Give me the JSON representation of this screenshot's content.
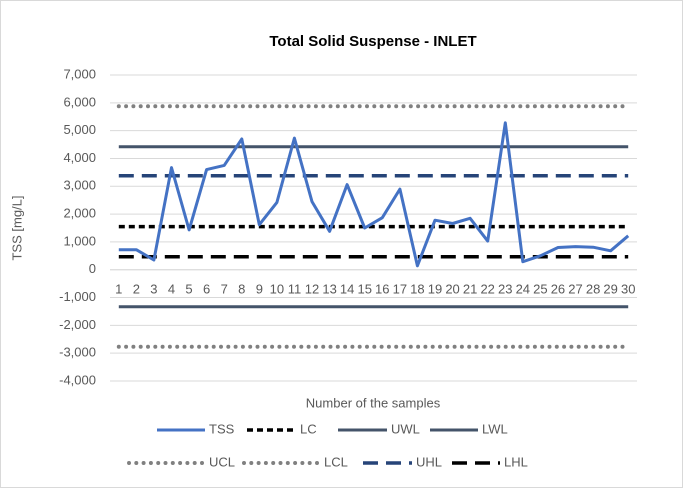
{
  "chart_data": {
    "type": "line",
    "title": "Total Solid Suspense - INLET",
    "y_label": "TSS [mg/L]",
    "x_label": "Number of the samples",
    "categories": [
      1,
      2,
      3,
      4,
      5,
      6,
      7,
      8,
      9,
      10,
      11,
      12,
      13,
      14,
      15,
      16,
      17,
      18,
      19,
      20,
      21,
      22,
      23,
      24,
      25,
      26,
      27,
      28,
      29,
      30
    ],
    "ylim": [
      -4000,
      7000
    ],
    "yticks": [
      {
        "value": 7000,
        "label": "7,000"
      },
      {
        "value": 6000,
        "label": "6,000"
      },
      {
        "value": 5000,
        "label": "5,000"
      },
      {
        "value": 4000,
        "label": "4,000"
      },
      {
        "value": 3000,
        "label": "3,000"
      },
      {
        "value": 2000,
        "label": "2,000"
      },
      {
        "value": 1000,
        "label": "1,000"
      },
      0,
      {
        "value": -1000,
        "label": "-1,000"
      },
      {
        "value": -2000,
        "label": "-2,000"
      },
      {
        "value": -3000,
        "label": "-3,000"
      },
      {
        "value": -4000,
        "label": "-4,000"
      }
    ],
    "grid": true,
    "legend": "bottom",
    "series": [
      {
        "name": "TSS",
        "color": "#4472c4",
        "dash": "solid",
        "values": [
          720,
          720,
          350,
          3670,
          1430,
          3600,
          3750,
          4700,
          1620,
          2420,
          4730,
          2450,
          1380,
          3060,
          1500,
          1870,
          2900,
          140,
          1780,
          1660,
          1850,
          1030,
          5280,
          290,
          500,
          800,
          830,
          810,
          680,
          1220
        ]
      },
      {
        "name": "LC",
        "color": "#000000",
        "dash": "dash",
        "values": [
          1550,
          1550,
          1550,
          1550,
          1550,
          1550,
          1550,
          1550,
          1550,
          1550,
          1550,
          1550,
          1550,
          1550,
          1550,
          1550,
          1550,
          1550,
          1550,
          1550,
          1550,
          1550,
          1550,
          1550,
          1550,
          1550,
          1550,
          1550,
          1550,
          1550
        ]
      },
      {
        "name": "UWL",
        "color": "#44546a",
        "dash": "solid",
        "values": [
          4420,
          4420,
          4420,
          4420,
          4420,
          4420,
          4420,
          4420,
          4420,
          4420,
          4420,
          4420,
          4420,
          4420,
          4420,
          4420,
          4420,
          4420,
          4420,
          4420,
          4420,
          4420,
          4420,
          4420,
          4420,
          4420,
          4420,
          4420,
          4420,
          4420
        ]
      },
      {
        "name": "LWL",
        "color": "#44546a",
        "dash": "solid",
        "values": [
          -1330,
          -1330,
          -1330,
          -1330,
          -1330,
          -1330,
          -1330,
          -1330,
          -1330,
          -1330,
          -1330,
          -1330,
          -1330,
          -1330,
          -1330,
          -1330,
          -1330,
          -1330,
          -1330,
          -1330,
          -1330,
          -1330,
          -1330,
          -1330,
          -1330,
          -1330,
          -1330,
          -1330,
          -1330,
          -1330
        ]
      },
      {
        "name": "UCL",
        "color": "#808080",
        "dash": "dot",
        "values": [
          5880,
          5880,
          5880,
          5880,
          5880,
          5880,
          5880,
          5880,
          5880,
          5880,
          5880,
          5880,
          5880,
          5880,
          5880,
          5880,
          5880,
          5880,
          5880,
          5880,
          5880,
          5880,
          5880,
          5880,
          5880,
          5880,
          5880,
          5880,
          5880,
          5880
        ]
      },
      {
        "name": "LCL",
        "color": "#808080",
        "dash": "dot",
        "values": [
          -2770,
          -2770,
          -2770,
          -2770,
          -2770,
          -2770,
          -2770,
          -2770,
          -2770,
          -2770,
          -2770,
          -2770,
          -2770,
          -2770,
          -2770,
          -2770,
          -2770,
          -2770,
          -2770,
          -2770,
          -2770,
          -2770,
          -2770,
          -2770,
          -2770,
          -2770,
          -2770,
          -2770,
          -2770,
          -2770
        ]
      },
      {
        "name": "UHL",
        "color": "#264478",
        "dash": "longdash",
        "values": [
          3380,
          3380,
          3380,
          3380,
          3380,
          3380,
          3380,
          3380,
          3380,
          3380,
          3380,
          3380,
          3380,
          3380,
          3380,
          3380,
          3380,
          3380,
          3380,
          3380,
          3380,
          3380,
          3380,
          3380,
          3380,
          3380,
          3380,
          3380,
          3380,
          3380
        ]
      },
      {
        "name": "LHL",
        "color": "#000000",
        "dash": "longdash",
        "values": [
          470,
          470,
          470,
          470,
          470,
          470,
          470,
          470,
          470,
          470,
          470,
          470,
          470,
          470,
          470,
          470,
          470,
          470,
          470,
          470,
          470,
          470,
          470,
          470,
          470,
          470,
          470,
          470,
          470,
          470
        ]
      }
    ]
  }
}
